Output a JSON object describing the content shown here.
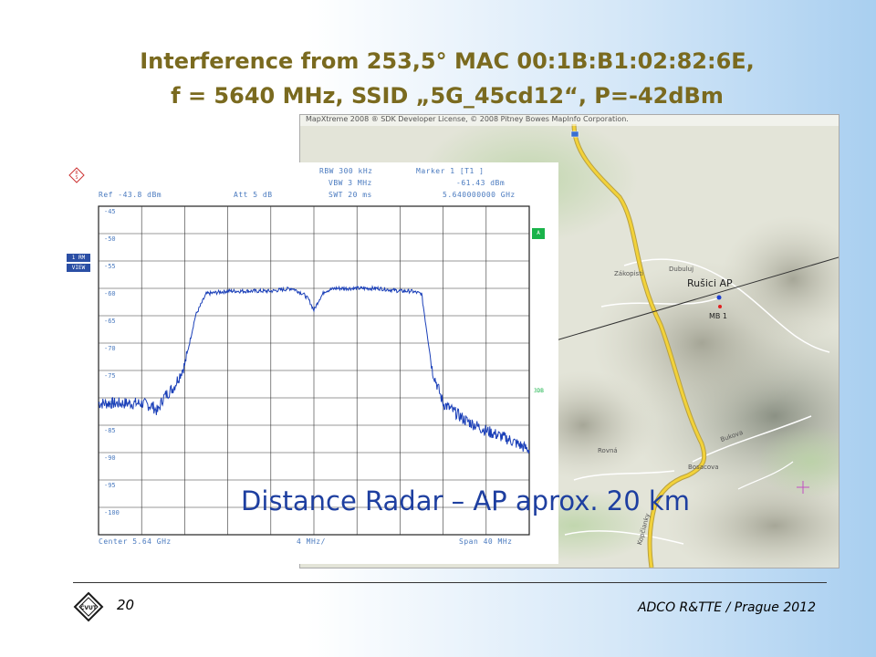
{
  "slide": {
    "title_line1": "Interference from 253,5° MAC 00:1B:B1:02:82:6E,",
    "title_line2": "f = 5640 MHz, SSID „5G_45cd12“, P=-42dBm",
    "distance_text": "Distance Radar – AP aprox. 20 km",
    "page_number": "20",
    "footer": "ADCO R&TTE / Prague 2012"
  },
  "map": {
    "copyright": "MapXtreme 2008 ® SDK Developer License, © 2008 Pitney Bowes MapInfo Corporation.",
    "ap_label": "Rušici AP",
    "mb_label": "MB 1",
    "place_labels": [
      "Dubuluj",
      "Zákopisti",
      "Bosacova",
      "Kopčianky",
      "Rovná",
      "Bukova"
    ],
    "colors": {
      "road": "#f2d23a",
      "ap_point": "#1e3fd0",
      "mb_point": "#e02020",
      "bearing_line": "#333333",
      "marker": "#c24fc2"
    }
  },
  "spectrum": {
    "header": {
      "rbw": "RBW 300 kHz",
      "vbw": "VBW 3 MHz",
      "swt": "SWT 20 ms",
      "ref": "Ref -43.8 dBm",
      "att": "Att  5 dB",
      "marker_title": "Marker 1 [T1 ]",
      "marker_level": "-61.43 dBm",
      "marker_freq": "5.640000000 GHz"
    },
    "side_labels": {
      "rm": "1 RM",
      "view": "VIEW",
      "a": "A",
      "3db": "3DB"
    },
    "footer": {
      "center": "Center 5.64 GHz",
      "div": "4 MHz/",
      "span": "Span 40 MHz"
    },
    "y_ticks": [
      "-45",
      "-50",
      "-55",
      "-60",
      "-65",
      "-70",
      "-75",
      "-80",
      "-85",
      "-90",
      "-95",
      "-100"
    ]
  },
  "chart_data": {
    "type": "line",
    "title": "",
    "xlabel": "",
    "ylabel": "",
    "xlim": [
      5.62,
      5.66
    ],
    "ylim": [
      -103,
      -43
    ],
    "grid": true,
    "series": [
      {
        "x": [
          5.62,
          5.622,
          5.624,
          5.625,
          5.6255,
          5.626,
          5.6265,
          5.627,
          5.628,
          5.629,
          5.63,
          5.632,
          5.634,
          5.636,
          5.638,
          5.639,
          5.6395,
          5.64,
          5.6405,
          5.641,
          5.642,
          5.644,
          5.646,
          5.648,
          5.649,
          5.65,
          5.6505,
          5.651,
          5.6515,
          5.652,
          5.654,
          5.656,
          5.658,
          5.66
        ],
        "y": [
          -79,
          -79,
          -79,
          -79.5,
          -80.5,
          -78,
          -77,
          -76,
          -72,
          -63,
          -59,
          -58.5,
          -58.5,
          -58.5,
          -58,
          -59,
          -60,
          -62,
          -60,
          -58.5,
          -58,
          -58,
          -58,
          -58.5,
          -58.5,
          -59,
          -66,
          -73,
          -76,
          -79,
          -82,
          -84,
          -85.5,
          -87.5
        ]
      }
    ]
  }
}
